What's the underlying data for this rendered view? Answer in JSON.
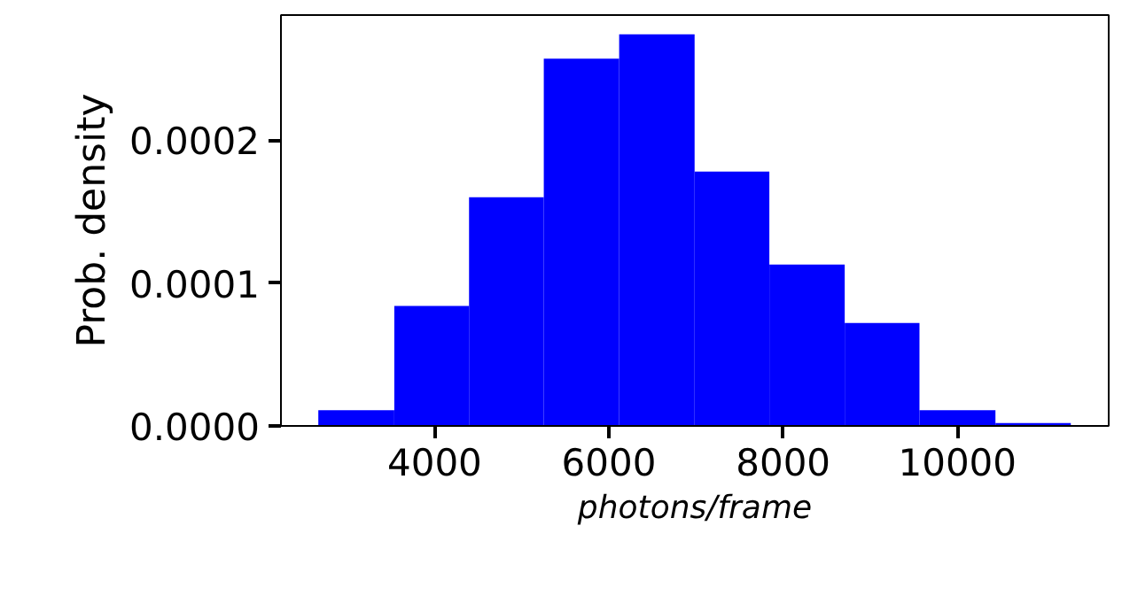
{
  "chart_data": {
    "type": "histogram",
    "xlabel": "photons/frame",
    "ylabel": "Prob. density",
    "color": "#0000ff",
    "bins": [
      2665,
      3537,
      4395,
      5253,
      6118,
      6984,
      7842,
      8707,
      9565,
      10437,
      11302
    ],
    "values": [
      1.1e-05,
      8.4e-05,
      0.00016,
      0.000257,
      0.000274,
      0.000178,
      0.000113,
      7.2e-05,
      1.1e-05,
      2e-06
    ],
    "xlim": [
      2236,
      11737
    ],
    "ylim": [
      0,
      0.0002875
    ],
    "xticks": [
      4000,
      6000,
      8000,
      10000
    ],
    "yticks": [
      {
        "value": 0,
        "label": "0.0000"
      },
      {
        "value": 0.0001,
        "label": "0.0001"
      },
      {
        "value": 0.0002,
        "label": "0.0002"
      }
    ],
    "grid": false
  }
}
